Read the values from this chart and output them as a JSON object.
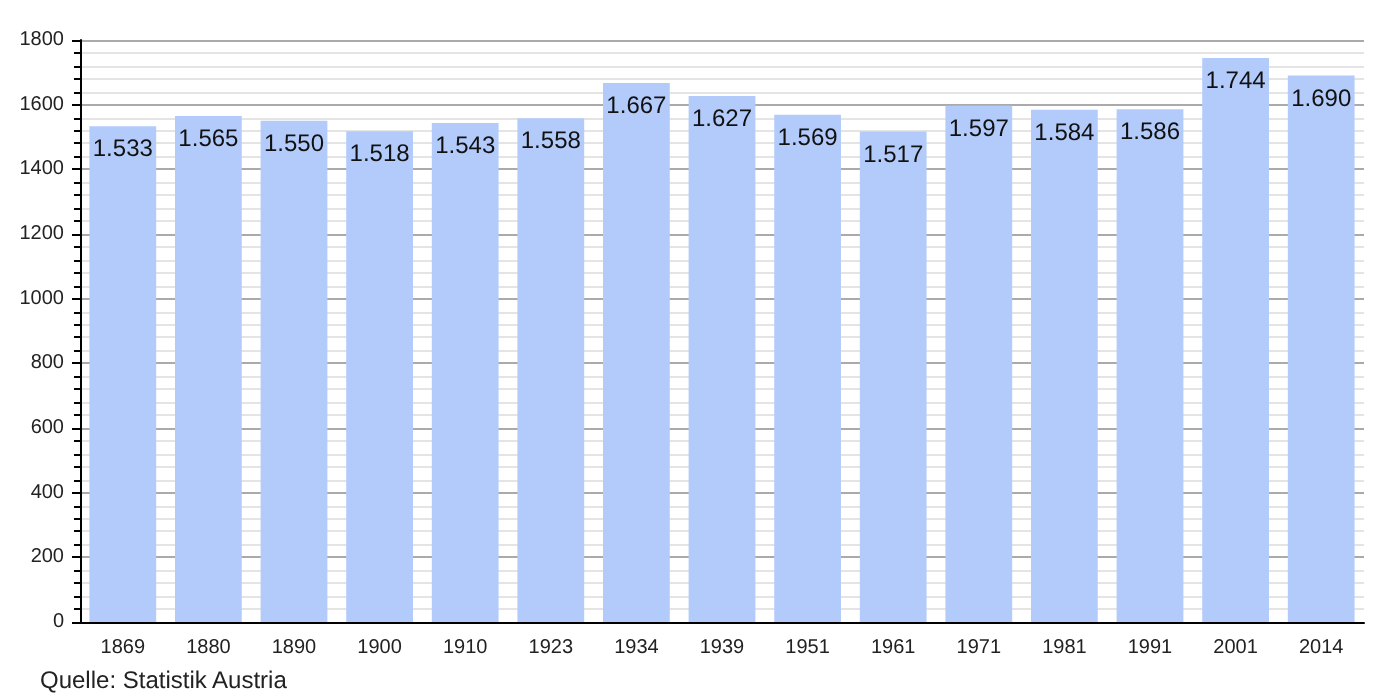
{
  "chart_data": {
    "type": "bar",
    "categories": [
      "1869",
      "1880",
      "1890",
      "1900",
      "1910",
      "1923",
      "1934",
      "1939",
      "1951",
      "1961",
      "1971",
      "1981",
      "1991",
      "2001",
      "2014"
    ],
    "values": [
      1533,
      1565,
      1550,
      1518,
      1543,
      1558,
      1667,
      1627,
      1569,
      1517,
      1597,
      1584,
      1586,
      1744,
      1690
    ],
    "value_labels": [
      "1.533",
      "1.565",
      "1.550",
      "1.518",
      "1.543",
      "1.558",
      "1.667",
      "1.627",
      "1.569",
      "1.517",
      "1.597",
      "1.584",
      "1.586",
      "1.744",
      "1.690"
    ],
    "color": "#b3cbfa",
    "ylim": [
      0,
      1800
    ],
    "yticks": [
      0,
      200,
      400,
      600,
      800,
      1000,
      1200,
      1400,
      1600,
      1800
    ],
    "grid": true,
    "annotations": [
      "Quelle: Statistik Austria"
    ]
  }
}
